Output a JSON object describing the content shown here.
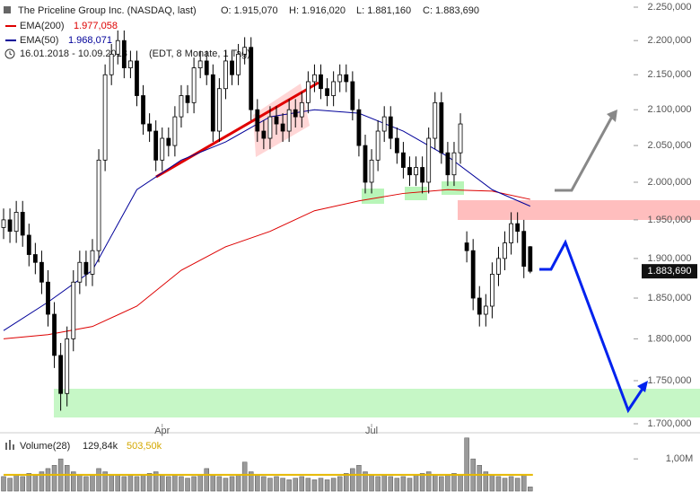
{
  "chart_data": {
    "type": "candlestick",
    "title": "The Priceline Group Inc. (NASDAQ, last)",
    "ohlc_labels": [
      "O: 1.915,070",
      "H: 1.916,020",
      "L: 1.881,160",
      "C: 1.883,690"
    ],
    "date_range": "16.01.2018 - 10.09.2018",
    "date_note": "(EDT, 8 Monate, 1 Tag)",
    "categories": [
      null,
      null,
      null,
      null,
      null,
      null,
      null,
      null,
      null,
      null,
      null,
      null,
      null,
      null,
      null,
      null,
      null,
      null,
      null,
      null,
      null,
      null,
      null,
      null,
      null,
      "Apr",
      null,
      null,
      null,
      null,
      null,
      null,
      null,
      null,
      null,
      null,
      null,
      null,
      null,
      null,
      null,
      null,
      null,
      null,
      null,
      null,
      null,
      null,
      null,
      null,
      null,
      null,
      null,
      null,
      null,
      null,
      null,
      null,
      "Jul",
      null,
      null,
      null,
      null,
      null,
      null,
      null,
      null,
      null,
      null,
      null,
      null,
      null,
      null,
      null,
      null,
      null,
      null,
      null,
      null,
      null,
      null,
      null,
      null,
      null
    ],
    "open": [
      1940,
      1950,
      1935,
      1960,
      1930,
      1905,
      1895,
      1870,
      1830,
      1780,
      1735,
      1800,
      1870,
      1895,
      1880,
      1910,
      2030,
      2150,
      2180,
      2200,
      2160,
      2170,
      2120,
      2080,
      2070,
      2030,
      2060,
      2050,
      2090,
      2120,
      2110,
      2160,
      2170,
      2150,
      2070,
      2130,
      2170,
      2150,
      2180,
      2190,
      2100,
      2070,
      2060,
      2090,
      2080,
      2070,
      2100,
      2090,
      2110,
      2140,
      2150,
      2130,
      2120,
      2140,
      2150,
      2140,
      2100,
      2050,
      2000,
      2030,
      2070,
      2090,
      2060,
      2040,
      2020,
      2010,
      2020,
      2000,
      2060,
      2110,
      2040,
      2010,
      2040,
      1920,
      1910,
      1850,
      1830,
      1840,
      1880,
      1900,
      1920,
      1945,
      1935,
      1915.07
    ],
    "high": [
      1965,
      1965,
      1975,
      1975,
      1945,
      1920,
      1910,
      1885,
      1845,
      1795,
      1815,
      1885,
      1910,
      1910,
      1925,
      2045,
      2165,
      2195,
      2215,
      2215,
      2185,
      2185,
      2135,
      2095,
      2085,
      2075,
      2075,
      2105,
      2135,
      2135,
      2175,
      2185,
      2185,
      2165,
      2145,
      2185,
      2185,
      2195,
      2205,
      2205,
      2115,
      2085,
      2105,
      2105,
      2095,
      2115,
      2115,
      2125,
      2155,
      2165,
      2165,
      2145,
      2155,
      2165,
      2165,
      2155,
      2115,
      2065,
      2045,
      2085,
      2105,
      2105,
      2075,
      2055,
      2035,
      2035,
      2035,
      2075,
      2125,
      2125,
      2055,
      2055,
      2095,
      1935,
      1925,
      1865,
      1855,
      1895,
      1915,
      1935,
      1960,
      1960,
      1950,
      1916.02
    ],
    "low": [
      1925,
      1920,
      1920,
      1915,
      1890,
      1880,
      1855,
      1815,
      1765,
      1715,
      1720,
      1785,
      1855,
      1865,
      1865,
      1895,
      2015,
      2135,
      2165,
      2145,
      2145,
      2105,
      2065,
      2055,
      2015,
      2015,
      2035,
      2035,
      2075,
      2095,
      2095,
      2145,
      2135,
      2055,
      2055,
      2115,
      2135,
      2135,
      2165,
      2085,
      2055,
      2045,
      2045,
      2065,
      2055,
      2055,
      2075,
      2075,
      2095,
      2125,
      2115,
      2105,
      2105,
      2125,
      2125,
      2085,
      2035,
      1985,
      1985,
      2015,
      2055,
      2045,
      2025,
      2005,
      1995,
      1995,
      1985,
      1985,
      2045,
      2025,
      1995,
      1995,
      2025,
      1895,
      1835,
      1815,
      1815,
      1825,
      1865,
      1885,
      1905,
      1920,
      1875,
      1881.16
    ],
    "close": [
      1950,
      1935,
      1960,
      1930,
      1905,
      1895,
      1870,
      1830,
      1780,
      1735,
      1800,
      1870,
      1895,
      1880,
      1910,
      2030,
      2150,
      2180,
      2200,
      2160,
      2170,
      2120,
      2080,
      2070,
      2030,
      2060,
      2050,
      2090,
      2120,
      2110,
      2160,
      2170,
      2150,
      2070,
      2130,
      2170,
      2150,
      2180,
      2190,
      2100,
      2070,
      2060,
      2090,
      2080,
      2070,
      2100,
      2090,
      2110,
      2140,
      2150,
      2130,
      2120,
      2140,
      2150,
      2140,
      2100,
      2050,
      2000,
      2030,
      2070,
      2090,
      2060,
      2040,
      2020,
      2010,
      2020,
      2000,
      2060,
      2110,
      2040,
      2010,
      2040,
      2080,
      1910,
      1850,
      1830,
      1840,
      1880,
      1900,
      1920,
      1945,
      1935,
      1890,
      1883.69
    ],
    "up_color": "#ffffff",
    "down_color": "#000000",
    "last_label": "1.883,690",
    "log_scale": true,
    "ylim": [
      1700,
      2250
    ],
    "yticks": [
      {
        "value": 1700,
        "label": "1.700,000"
      },
      {
        "value": 1750,
        "label": "1.750,000"
      },
      {
        "value": 1800,
        "label": "1.800,000"
      },
      {
        "value": 1850,
        "label": "1.850,000"
      },
      {
        "value": 1900,
        "label": "1.900,000"
      },
      {
        "value": 1950,
        "label": "1.950,000"
      },
      {
        "value": 2000,
        "label": "2.000,000"
      },
      {
        "value": 2050,
        "label": "2.050,000"
      },
      {
        "value": 2100,
        "label": "2.100,000"
      },
      {
        "value": 2150,
        "label": "2.150,000"
      },
      {
        "value": 2200,
        "label": "2.200,000"
      },
      {
        "value": 2250,
        "label": "2.250,000"
      }
    ],
    "lines": [
      {
        "name": "EMA(200)",
        "color": "#dd0000",
        "last_label": "1.977,058",
        "x": [
          0,
          7,
          14,
          21,
          28,
          35,
          42,
          49,
          56,
          63,
          70,
          77,
          83
        ],
        "values": [
          1800,
          1805,
          1815,
          1840,
          1885,
          1915,
          1935,
          1962,
          1975,
          1985,
          1990,
          1988,
          1977.058
        ]
      },
      {
        "name": "EMA(50)",
        "color": "#000099",
        "last_label": "1.968,071",
        "x": [
          0,
          7,
          14,
          21,
          28,
          35,
          42,
          49,
          56,
          63,
          70,
          77,
          83
        ],
        "values": [
          1810,
          1845,
          1885,
          1990,
          2030,
          2055,
          2090,
          2100,
          2095,
          2070,
          2035,
          1990,
          1968.071
        ]
      }
    ],
    "volume": {
      "title": "Volume(28)",
      "color": "#9a9a9a",
      "values": [
        0.45,
        0.4,
        0.5,
        0.45,
        0.55,
        0.5,
        0.6,
        0.7,
        0.8,
        1.0,
        0.8,
        0.6,
        0.5,
        0.45,
        0.5,
        0.7,
        0.6,
        0.5,
        0.5,
        0.45,
        0.5,
        0.45,
        0.5,
        0.55,
        0.6,
        0.5,
        0.45,
        0.5,
        0.45,
        0.4,
        0.45,
        0.5,
        0.7,
        0.5,
        0.45,
        0.4,
        0.45,
        0.5,
        0.9,
        0.6,
        0.5,
        0.45,
        0.4,
        0.45,
        0.4,
        0.35,
        0.4,
        0.45,
        0.4,
        0.35,
        0.4,
        0.35,
        0.4,
        0.45,
        0.55,
        0.7,
        0.8,
        0.6,
        0.5,
        0.45,
        0.5,
        0.45,
        0.4,
        0.45,
        0.4,
        0.5,
        0.55,
        0.6,
        0.5,
        0.45,
        0.5,
        0.55,
        0.5,
        1.65,
        1.0,
        0.8,
        0.6,
        0.5,
        0.45,
        0.4,
        0.45,
        0.4,
        0.5,
        0.12984
      ],
      "current_label": "129,84k",
      "average": 0.5035,
      "average_label": "503,50k",
      "average_color": "#e6b800",
      "ylim": [
        0,
        1.7
      ],
      "yticks": [
        {
          "value": 1,
          "label": "1,00M"
        }
      ]
    }
  }
}
